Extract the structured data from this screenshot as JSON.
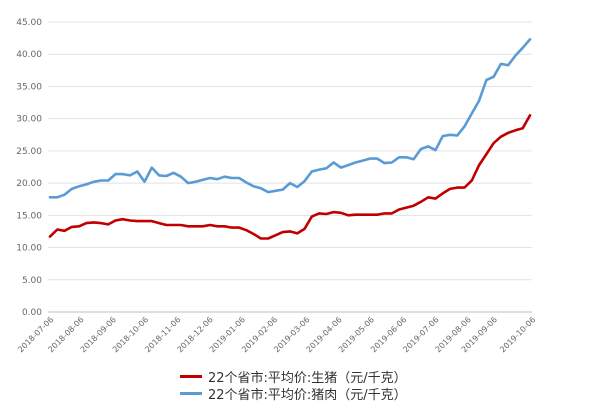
{
  "chart_data": {
    "type": "line",
    "x": [
      "2018-07-06",
      "2018-07-13",
      "2018-07-20",
      "2018-07-27",
      "2018-08-03",
      "2018-08-10",
      "2018-08-17",
      "2018-08-24",
      "2018-08-31",
      "2018-09-07",
      "2018-09-14",
      "2018-09-21",
      "2018-09-28",
      "2018-10-05",
      "2018-10-12",
      "2018-10-19",
      "2018-10-26",
      "2018-11-02",
      "2018-11-09",
      "2018-11-16",
      "2018-11-23",
      "2018-11-30",
      "2018-12-07",
      "2018-12-14",
      "2018-12-21",
      "2018-12-28",
      "2019-01-04",
      "2019-01-11",
      "2019-01-18",
      "2019-01-25",
      "2019-02-01",
      "2019-02-08",
      "2019-02-15",
      "2019-02-22",
      "2019-03-01",
      "2019-03-08",
      "2019-03-15",
      "2019-03-22",
      "2019-03-29",
      "2019-04-05",
      "2019-04-12",
      "2019-04-19",
      "2019-04-26",
      "2019-05-03",
      "2019-05-10",
      "2019-05-17",
      "2019-05-24",
      "2019-05-31",
      "2019-06-07",
      "2019-06-14",
      "2019-06-21",
      "2019-06-28",
      "2019-07-05",
      "2019-07-12",
      "2019-07-19",
      "2019-07-26",
      "2019-08-02",
      "2019-08-09",
      "2019-08-16",
      "2019-08-23",
      "2019-08-30",
      "2019-09-06",
      "2019-09-13",
      "2019-09-20",
      "2019-09-27",
      "2019-10-04",
      "2019-10-11"
    ],
    "x_tick_labels": [
      "2018-07-06",
      "2018-08-06",
      "2018-09-06",
      "2018-10-06",
      "2018-11-06",
      "2018-12-06",
      "2019-01-06",
      "2019-02-06",
      "2019-03-06",
      "2019-04-06",
      "2019-05-06",
      "2019-06-06",
      "2019-07-06",
      "2019-08-06",
      "2019-09-06",
      "2019-10-06"
    ],
    "series": [
      {
        "name": "22个省市:平均价:生猪（元/千克）",
        "color": "#c00000",
        "values": [
          11.7,
          12.8,
          12.6,
          13.2,
          13.3,
          13.8,
          13.9,
          13.8,
          13.6,
          14.2,
          14.4,
          14.2,
          14.1,
          14.1,
          14.1,
          13.8,
          13.5,
          13.5,
          13.5,
          13.3,
          13.3,
          13.3,
          13.5,
          13.3,
          13.3,
          13.1,
          13.1,
          12.7,
          12.1,
          11.4,
          11.4,
          11.9,
          12.4,
          12.5,
          12.2,
          12.9,
          14.8,
          15.3,
          15.2,
          15.5,
          15.4,
          15.0,
          15.1,
          15.1,
          15.1,
          15.1,
          15.3,
          15.3,
          15.9,
          16.2,
          16.5,
          17.1,
          17.8,
          17.6,
          18.4,
          19.1,
          19.3,
          19.3,
          20.4,
          22.8,
          24.5,
          26.2,
          27.2,
          27.8,
          28.2,
          28.5,
          30.5
        ]
      },
      {
        "name": "22个省市:平均价:猪肉（元/千克）",
        "color": "#5a9bd5",
        "values": [
          17.8,
          17.8,
          18.2,
          19.1,
          19.5,
          19.8,
          20.2,
          20.4,
          20.4,
          21.4,
          21.4,
          21.2,
          21.8,
          20.2,
          22.4,
          21.2,
          21.1,
          21.6,
          21.0,
          20.0,
          20.2,
          20.5,
          20.8,
          20.6,
          21.0,
          20.8,
          20.8,
          20.1,
          19.5,
          19.2,
          18.6,
          18.8,
          19.0,
          20.0,
          19.4,
          20.3,
          21.8,
          22.1,
          22.3,
          23.2,
          22.4,
          22.8,
          23.2,
          23.5,
          23.8,
          23.8,
          23.1,
          23.2,
          24.0,
          24.0,
          23.7,
          25.3,
          25.7,
          25.1,
          27.3,
          27.5,
          27.4,
          28.8,
          30.8,
          32.8,
          36.0,
          36.5,
          38.5,
          38.3,
          39.8,
          41.0,
          42.3
        ]
      }
    ],
    "y_ticks": [
      "0.00",
      "5.00",
      "10.00",
      "15.00",
      "20.00",
      "25.00",
      "30.00",
      "35.00",
      "40.00",
      "45.00"
    ],
    "ylim": [
      0,
      45
    ],
    "grid": true,
    "legend_position": "bottom",
    "title": "",
    "xlabel": "",
    "ylabel": ""
  }
}
